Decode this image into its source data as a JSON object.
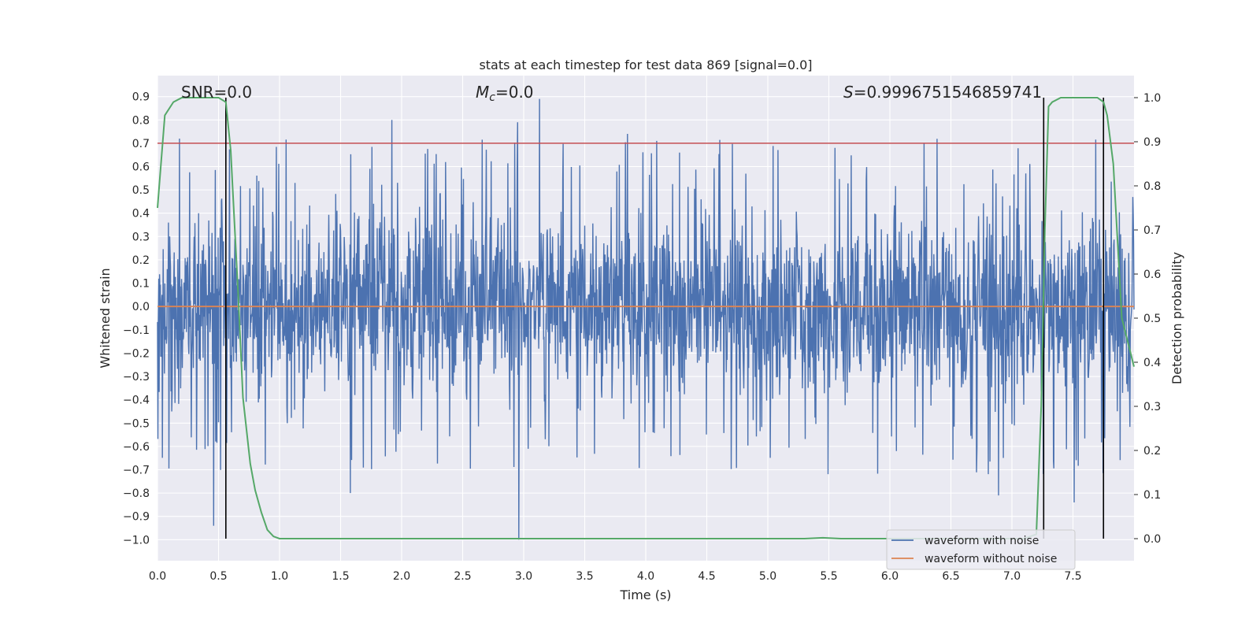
{
  "chart_data": {
    "type": "line",
    "title": "stats at each timestep for test data 869 [signal=0.0]",
    "xlabel": "Time (s)",
    "ylabel": "Whitened strain",
    "y2label": "Detection probability",
    "xlim": [
      0.0,
      8.0
    ],
    "ylim": [
      -1.09,
      0.99
    ],
    "y2lim": [
      -0.05,
      1.05
    ],
    "xticks": [
      0.0,
      0.5,
      1.0,
      1.5,
      2.0,
      2.5,
      3.0,
      3.5,
      4.0,
      4.5,
      5.0,
      5.5,
      6.0,
      6.5,
      7.0,
      7.5
    ],
    "xtick_labels": [
      "0.0",
      "0.5",
      "1.0",
      "1.5",
      "2.0",
      "2.5",
      "3.0",
      "3.5",
      "4.0",
      "4.5",
      "5.0",
      "5.5",
      "6.0",
      "6.5",
      "7.0",
      "7.5"
    ],
    "yticks": [
      -1.0,
      -0.9,
      -0.8,
      -0.7,
      -0.6,
      -0.5,
      -0.4,
      -0.3,
      -0.2,
      -0.1,
      0.0,
      0.1,
      0.2,
      0.3,
      0.4,
      0.5,
      0.6,
      0.7,
      0.8,
      0.9
    ],
    "ytick_labels": [
      "−1.0",
      "−0.9",
      "−0.8",
      "−0.7",
      "−0.6",
      "−0.5",
      "−0.4",
      "−0.3",
      "−0.2",
      "−0.1",
      "0.0",
      "0.1",
      "0.2",
      "0.3",
      "0.4",
      "0.5",
      "0.6",
      "0.7",
      "0.8",
      "0.9"
    ],
    "y2ticks": [
      0.0,
      0.1,
      0.2,
      0.3,
      0.4,
      0.5,
      0.6,
      0.7,
      0.8,
      0.9,
      1.0
    ],
    "y2tick_labels": [
      "0.0",
      "0.1",
      "0.2",
      "0.3",
      "0.4",
      "0.5",
      "0.6",
      "0.7",
      "0.8",
      "0.9",
      "1.0"
    ],
    "threshold_line": {
      "y": 0.7,
      "color": "#c44e52"
    },
    "noise_envelope": {
      "description": "waveform with noise: dense band, typical amplitude about ±0.45, spikes up to about ±0.9",
      "typical_amplitude": 0.45,
      "peaks": [
        {
          "x": 0.46,
          "y": -0.94
        },
        {
          "x": 0.18,
          "y": 0.72
        },
        {
          "x": 1.92,
          "y": 0.8
        },
        {
          "x": 2.96,
          "y": -1.0
        },
        {
          "x": 3.13,
          "y": 0.89
        },
        {
          "x": 2.95,
          "y": 0.79
        },
        {
          "x": 6.28,
          "y": 0.7
        },
        {
          "x": 1.58,
          "y": -0.8
        },
        {
          "x": 7.51,
          "y": -0.84
        },
        {
          "x": 6.89,
          "y": -0.81
        },
        {
          "x": 5.55,
          "y": 0.68
        },
        {
          "x": 3.85,
          "y": 0.74
        }
      ]
    },
    "vertical_markers": [
      0.56,
      7.26,
      7.75
    ],
    "detection_probability": {
      "x": [
        0.0,
        0.06,
        0.13,
        0.2,
        0.3,
        0.4,
        0.5,
        0.56,
        0.6,
        0.63,
        0.66,
        0.7,
        0.76,
        0.8,
        0.85,
        0.9,
        0.95,
        1.0,
        1.05,
        1.5,
        2.0,
        3.0,
        4.0,
        5.0,
        5.3,
        5.45,
        5.6,
        6.0,
        6.8,
        7.1,
        7.2,
        7.24,
        7.27,
        7.3,
        7.33,
        7.4,
        7.5,
        7.6,
        7.7,
        7.75,
        7.78,
        7.83,
        7.9,
        8.0
      ],
      "y": [
        0.75,
        0.96,
        0.99,
        1.0,
        1.0,
        1.0,
        1.0,
        0.99,
        0.88,
        0.72,
        0.56,
        0.32,
        0.17,
        0.11,
        0.06,
        0.02,
        0.005,
        0.0,
        0.0,
        0.0,
        0.0,
        0.0,
        0.0,
        0.0,
        0.0,
        0.002,
        0.0,
        0.0,
        0.0,
        0.0,
        0.01,
        0.3,
        0.7,
        0.98,
        0.99,
        1.0,
        1.0,
        1.0,
        1.0,
        0.99,
        0.96,
        0.85,
        0.5,
        0.39
      ]
    },
    "series": [
      {
        "name": "waveform with noise",
        "color": "#4c72b0"
      },
      {
        "name": "waveform without noise",
        "color": "#dd8452",
        "constant_value": 0.0
      },
      {
        "name": "detection probability",
        "color": "#55a868"
      }
    ],
    "annotations": {
      "snr": "SNR=0.0",
      "mc_symbol": "M",
      "mc_sub": "c",
      "mc_value": "=0.0",
      "s_symbol": "S",
      "s_value": "=0.9996751546859741"
    },
    "legend": {
      "position": "lower-right",
      "entries": [
        "waveform with noise",
        "waveform without noise"
      ]
    },
    "grid": true
  }
}
